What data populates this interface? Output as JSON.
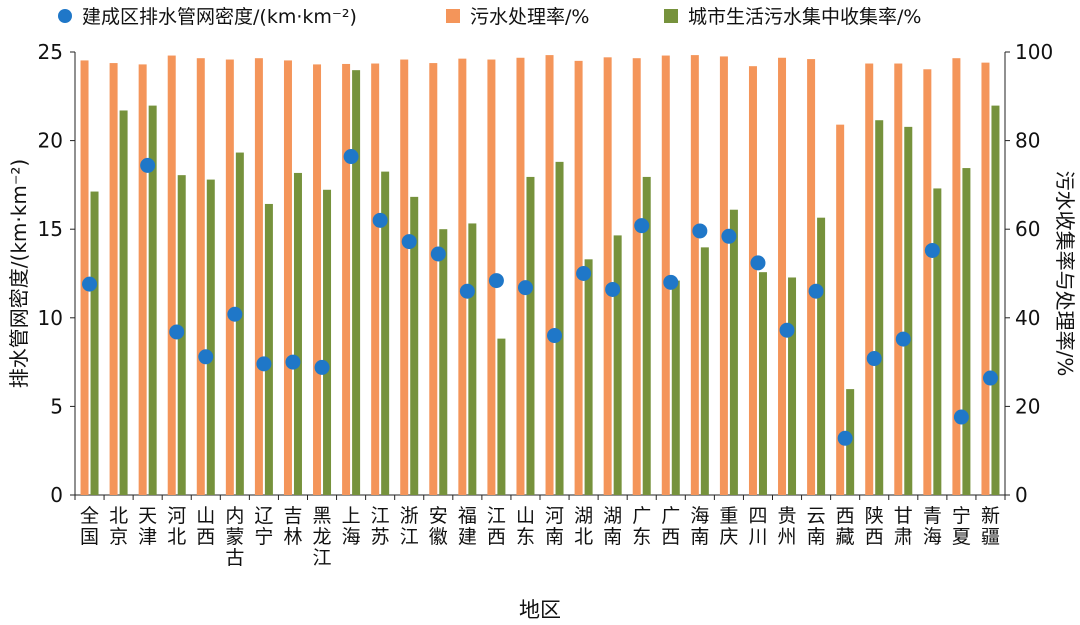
{
  "chart_data": {
    "type": "bar",
    "title": "",
    "legend": {
      "density": "建成区排水管网密度/(km·km⁻²)",
      "treatment": "污水处理率/%",
      "collection": "城市生活污水集中收集率/%"
    },
    "xlabel": "地区",
    "ylabel_left": "排水管网密度/(km·km⁻²)",
    "ylabel_right": "污水收集率与处理率/%",
    "ylim_left": [
      0,
      25
    ],
    "ylim_right": [
      0,
      100
    ],
    "yticks_left": [
      "0",
      "5",
      "10",
      "15",
      "20",
      "25"
    ],
    "yticks_right": [
      "0",
      "20",
      "40",
      "60",
      "80",
      "100"
    ],
    "categories": [
      "全国",
      "北京",
      "天津",
      "河北",
      "山西",
      "内蒙古",
      "辽宁",
      "吉林",
      "黑龙江",
      "上海",
      "江苏",
      "浙江",
      "安徽",
      "福建",
      "江西",
      "山东",
      "河南",
      "湖北",
      "湖南",
      "广东",
      "广西",
      "海南",
      "重庆",
      "四川",
      "贵州",
      "云南",
      "西藏",
      "陕西",
      "甘肃",
      "青海",
      "宁夏",
      "新疆"
    ],
    "series": [
      {
        "name": "污水处理率/%",
        "axis": "right",
        "kind": "bar",
        "color": "#F4955A",
        "values": [
          98.1,
          97.5,
          97.2,
          99.2,
          98.6,
          98.3,
          98.6,
          98.1,
          97.2,
          97.3,
          97.4,
          98.3,
          97.5,
          98.5,
          98.3,
          98.7,
          99.3,
          98.0,
          98.8,
          98.6,
          99.2,
          99.3,
          99.0,
          96.8,
          98.7,
          98.4,
          83.6,
          97.4,
          97.4,
          96.1,
          98.6,
          97.6
        ]
      },
      {
        "name": "城市生活污水集中收集率/%",
        "axis": "right",
        "kind": "bar",
        "color": "#76923C",
        "values": [
          68.5,
          86.8,
          87.9,
          72.2,
          71.2,
          77.3,
          65.7,
          72.7,
          68.9,
          95.9,
          73.0,
          67.3,
          60.0,
          61.3,
          35.3,
          71.8,
          75.2,
          53.2,
          58.6,
          71.8,
          48.4,
          55.9,
          64.4,
          50.3,
          49.1,
          62.6,
          23.9,
          84.6,
          83.1,
          69.2,
          73.8,
          87.9
        ]
      },
      {
        "name": "建成区排水管网密度/(km·km⁻²)",
        "axis": "left",
        "kind": "scatter",
        "color": "#1F77C8",
        "values": [
          11.9,
          null,
          18.6,
          9.2,
          7.8,
          10.2,
          7.4,
          7.5,
          7.2,
          19.1,
          15.5,
          14.3,
          13.6,
          11.5,
          12.1,
          11.7,
          9.0,
          12.5,
          11.6,
          15.2,
          12.0,
          14.9,
          14.6,
          13.1,
          9.3,
          11.5,
          3.2,
          7.7,
          8.8,
          13.8,
          4.4,
          6.6
        ]
      }
    ]
  }
}
